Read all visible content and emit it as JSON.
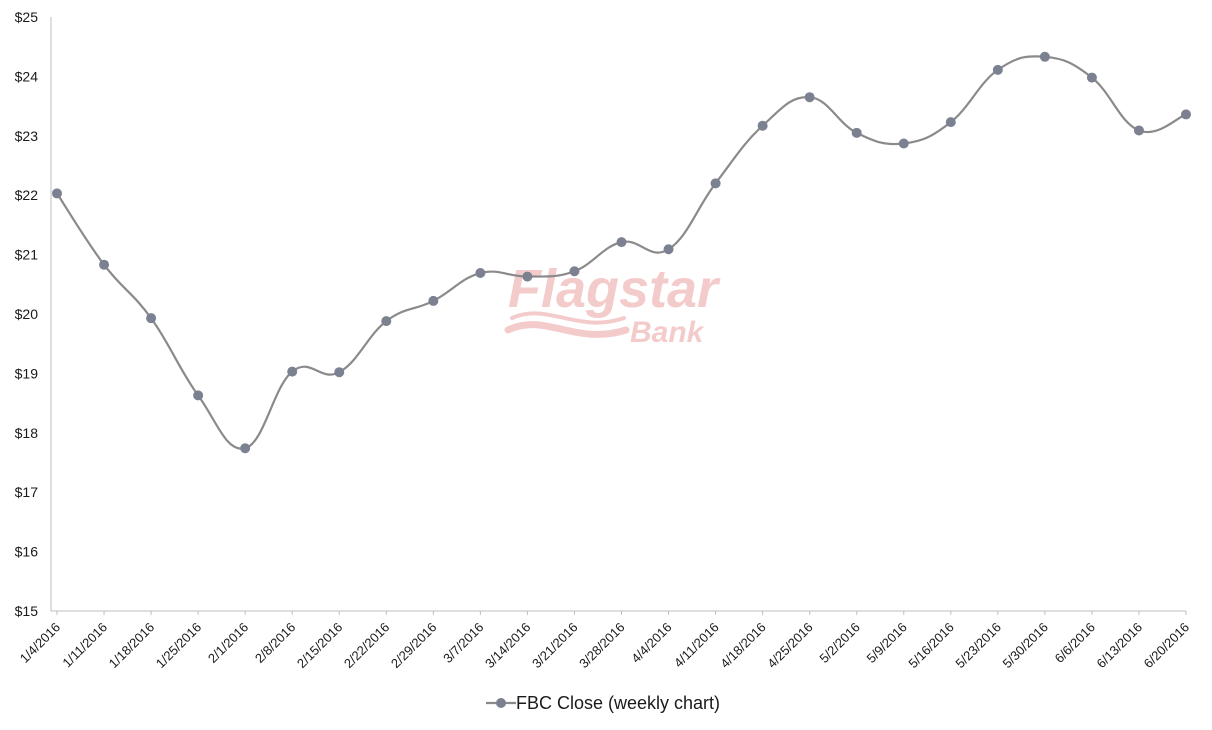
{
  "chart_data": {
    "type": "line",
    "title": "",
    "xlabel": "",
    "ylabel": "",
    "ylim": [
      15,
      25
    ],
    "y_ticks": [
      "$15",
      "$16",
      "$17",
      "$18",
      "$19",
      "$20",
      "$21",
      "$22",
      "$23",
      "$24",
      "$25"
    ],
    "y_tick_values": [
      15,
      16,
      17,
      18,
      19,
      20,
      21,
      22,
      23,
      24,
      25
    ],
    "categories": [
      "1/4/2016",
      "1/11/2016",
      "1/18/2016",
      "1/25/2016",
      "2/1/2016",
      "2/8/2016",
      "2/15/2016",
      "2/22/2016",
      "2/29/2016",
      "3/7/2016",
      "3/14/2016",
      "3/21/2016",
      "3/28/2016",
      "4/4/2016",
      "4/11/2016",
      "4/18/2016",
      "4/25/2016",
      "5/2/2016",
      "5/9/2016",
      "5/16/2016",
      "5/23/2016",
      "5/30/2016",
      "6/6/2016",
      "6/13/2016",
      "6/20/2016"
    ],
    "series": [
      {
        "name": "FBC Close (weekly chart)",
        "values": [
          22.03,
          20.83,
          19.93,
          18.63,
          17.74,
          19.03,
          19.02,
          19.88,
          20.22,
          20.69,
          20.63,
          20.72,
          21.21,
          21.09,
          22.2,
          23.17,
          23.65,
          23.05,
          22.87,
          23.23,
          24.11,
          24.33,
          23.98,
          23.09,
          23.36
        ]
      }
    ],
    "grid": false,
    "legend_position": "bottom",
    "colors": {
      "line": "#8a8a8a",
      "marker": "#7b8190",
      "axis": "#bfbfbf"
    }
  },
  "watermark": {
    "brand": "Flagstar",
    "sub": "Bank",
    "color": "#f3c6c6"
  }
}
